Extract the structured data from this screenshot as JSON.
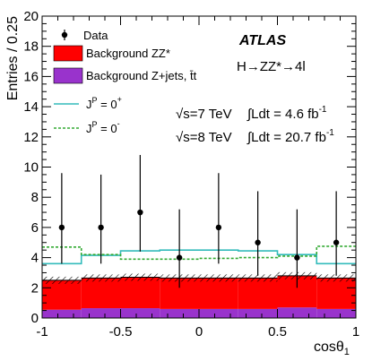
{
  "chart_data": {
    "type": "histogram",
    "xlabel": "cosθ",
    "xlabel_sub": "1",
    "ylabel": "Entries / 0.25",
    "xlim": [
      -1,
      1
    ],
    "ylim": [
      0,
      20
    ],
    "x_ticks": [
      -1,
      -0.5,
      0,
      0.5,
      1
    ],
    "x_tick_labels": [
      "-1",
      "-0.5",
      "0",
      "0.5",
      "1"
    ],
    "y_ticks": [
      0,
      2,
      4,
      6,
      8,
      10,
      12,
      14,
      16,
      18,
      20
    ],
    "y_tick_labels": [
      "0",
      "2",
      "4",
      "6",
      "8",
      "10",
      "12",
      "14",
      "16",
      "18",
      "20"
    ],
    "bin_edges": [
      -1,
      -0.75,
      -0.5,
      -0.25,
      0,
      0.25,
      0.5,
      0.75,
      1
    ],
    "data": {
      "name": "Data",
      "x": [
        -0.875,
        -0.625,
        -0.375,
        -0.125,
        0.125,
        0.375,
        0.625,
        0.875
      ],
      "y": [
        6,
        6,
        7,
        4,
        6,
        5,
        4,
        5
      ],
      "err_up": [
        3.6,
        3.5,
        3.8,
        3.2,
        3.6,
        3.4,
        3.2,
        3.4
      ],
      "err_down": [
        2.4,
        2.4,
        2.6,
        2.0,
        2.4,
        2.2,
        2.0,
        2.2
      ]
    },
    "series": [
      {
        "name": "Background ZZ*",
        "values": [
          1.95,
          2.0,
          2.05,
          2.05,
          2.05,
          2.05,
          2.1,
          2.05
        ],
        "color": "#ff0000"
      },
      {
        "name": "Background Z+jets, t̄t",
        "values": [
          0.55,
          0.65,
          0.65,
          0.6,
          0.6,
          0.6,
          0.7,
          0.6
        ],
        "color": "#9933cc"
      },
      {
        "name": "J^P = 0^+",
        "values": [
          3.6,
          4.15,
          4.45,
          4.5,
          4.5,
          4.45,
          4.2,
          3.6
        ],
        "color": "#33bbbb",
        "style": "solid"
      },
      {
        "name": "J^P = 0^-",
        "values": [
          4.7,
          4.2,
          3.9,
          3.9,
          3.95,
          4.0,
          4.1,
          4.75
        ],
        "color": "#33aa33",
        "style": "dashed"
      }
    ],
    "legend": [
      {
        "key": "data",
        "label": "Data"
      },
      {
        "key": "zz",
        "label": "Background ZZ*"
      },
      {
        "key": "zjets",
        "label": "Background Z+jets, t̄t"
      },
      {
        "key": "p_plus",
        "label": "J",
        "sup1": "P",
        "mid": " = 0",
        "sup2": "+"
      },
      {
        "key": "p_minus",
        "label": "J",
        "sup1": "P",
        "mid": " = 0",
        "sup2": "-"
      }
    ],
    "legend_position": "top-left",
    "annotations": {
      "experiment": "ATLAS",
      "process": "H→ZZ*→4l",
      "line1_energy": "√s=7 TeV",
      "line1_lumi": "∫Ldt = 4.6 fb",
      "line1_unit_sup": "-1",
      "line2_energy": "√s=8 TeV",
      "line2_lumi": "∫Ldt = 20.7 fb",
      "line2_unit_sup": "-1"
    },
    "grid": false
  }
}
